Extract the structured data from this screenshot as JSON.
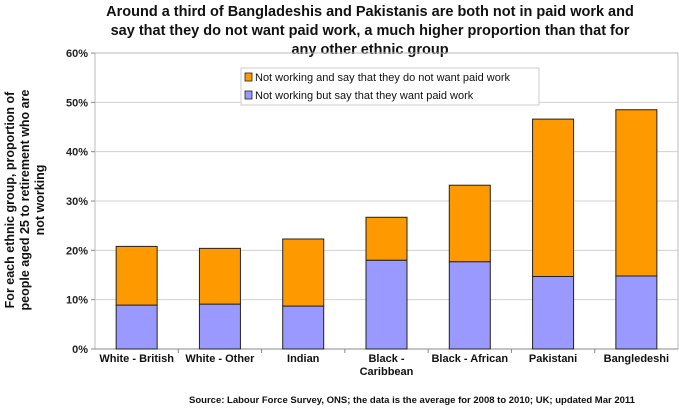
{
  "chart_data": {
    "type": "bar",
    "stacked": true,
    "title_lines": [
      "Around a third of Bangladeshis and Pakistanis are both not in paid work and",
      "say that they do not want paid work, a much higher proportion than that for",
      "any other ethnic group"
    ],
    "ylabel_lines": [
      "For each ethnic group, proportion of",
      "people aged 25 to retirement who are",
      "not working"
    ],
    "xlabel": "",
    "source": "Source: Labour Force Survey, ONS; the data is the average for 2008 to 2010; UK; updated Mar 2011",
    "categories": [
      [
        "White - British"
      ],
      [
        "White - Other"
      ],
      [
        "Indian"
      ],
      [
        "Black -",
        "Caribbean"
      ],
      [
        "Black - African"
      ],
      [
        "Pakistani"
      ],
      [
        "Bangledeshi"
      ]
    ],
    "series": [
      {
        "name": "Not working but say that they want paid work",
        "color": "#9999ff",
        "values": [
          8.9,
          9.1,
          8.7,
          18.0,
          17.7,
          14.7,
          14.8
        ]
      },
      {
        "name": "Not working and say that they do not want paid work",
        "color": "#ff9900",
        "values": [
          11.9,
          11.3,
          13.6,
          8.7,
          15.5,
          31.9,
          33.7
        ]
      }
    ],
    "legend_order": [
      1,
      0
    ],
    "legend_placement": "top-center",
    "ylim": [
      0,
      60
    ],
    "yticks": [
      "0%",
      "10%",
      "20%",
      "30%",
      "40%",
      "50%",
      "60%"
    ],
    "grid": true
  }
}
